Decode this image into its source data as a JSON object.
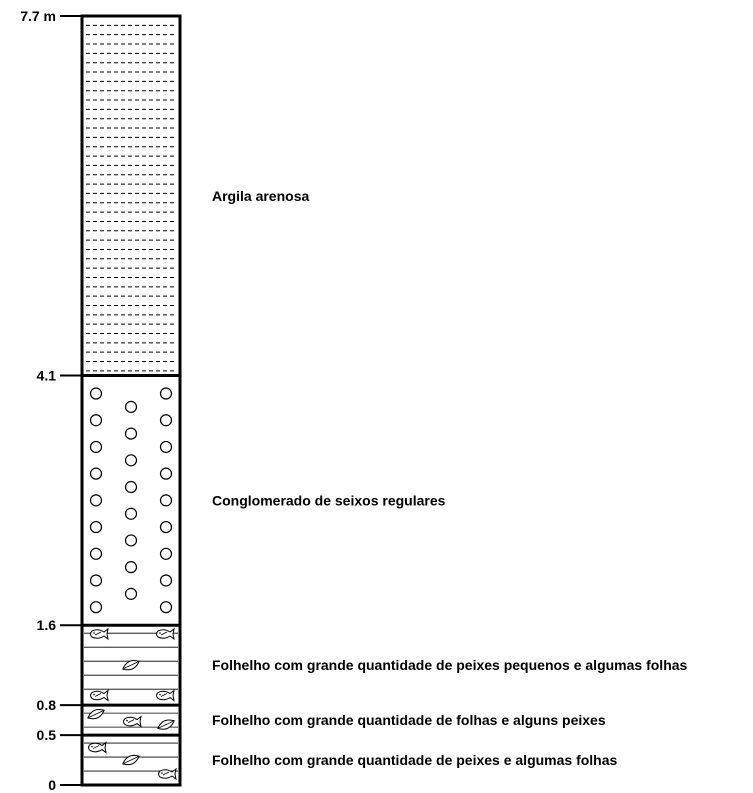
{
  "section": {
    "unit": "m",
    "ticks": [
      {
        "value": 0,
        "label": "0"
      },
      {
        "value": 0.5,
        "label": "0.5"
      },
      {
        "value": 0.8,
        "label": "0.8"
      },
      {
        "value": 1.6,
        "label": "1.6"
      },
      {
        "value": 4.1,
        "label": "4.1"
      },
      {
        "value": 7.7,
        "label": "7.7 m"
      }
    ],
    "layers": [
      {
        "from": 0,
        "to": 0.5,
        "lithology": "shale-fossil",
        "label": "Folhelho com grande quantidade de peixes e algumas folhas"
      },
      {
        "from": 0.5,
        "to": 0.8,
        "lithology": "shale-fossil",
        "label": "Folhelho com grande quantidade de folhas e alguns peixes"
      },
      {
        "from": 0.8,
        "to": 1.6,
        "lithology": "shale-fossil",
        "label": "Folhelho com grande quantidade de peixes pequenos e algumas folhas"
      },
      {
        "from": 1.6,
        "to": 4.1,
        "lithology": "conglomerate",
        "label": "Conglomerado de seixos regulares"
      },
      {
        "from": 4.1,
        "to": 7.7,
        "lithology": "sandy-clay",
        "label": "Argila arenosa"
      }
    ]
  }
}
